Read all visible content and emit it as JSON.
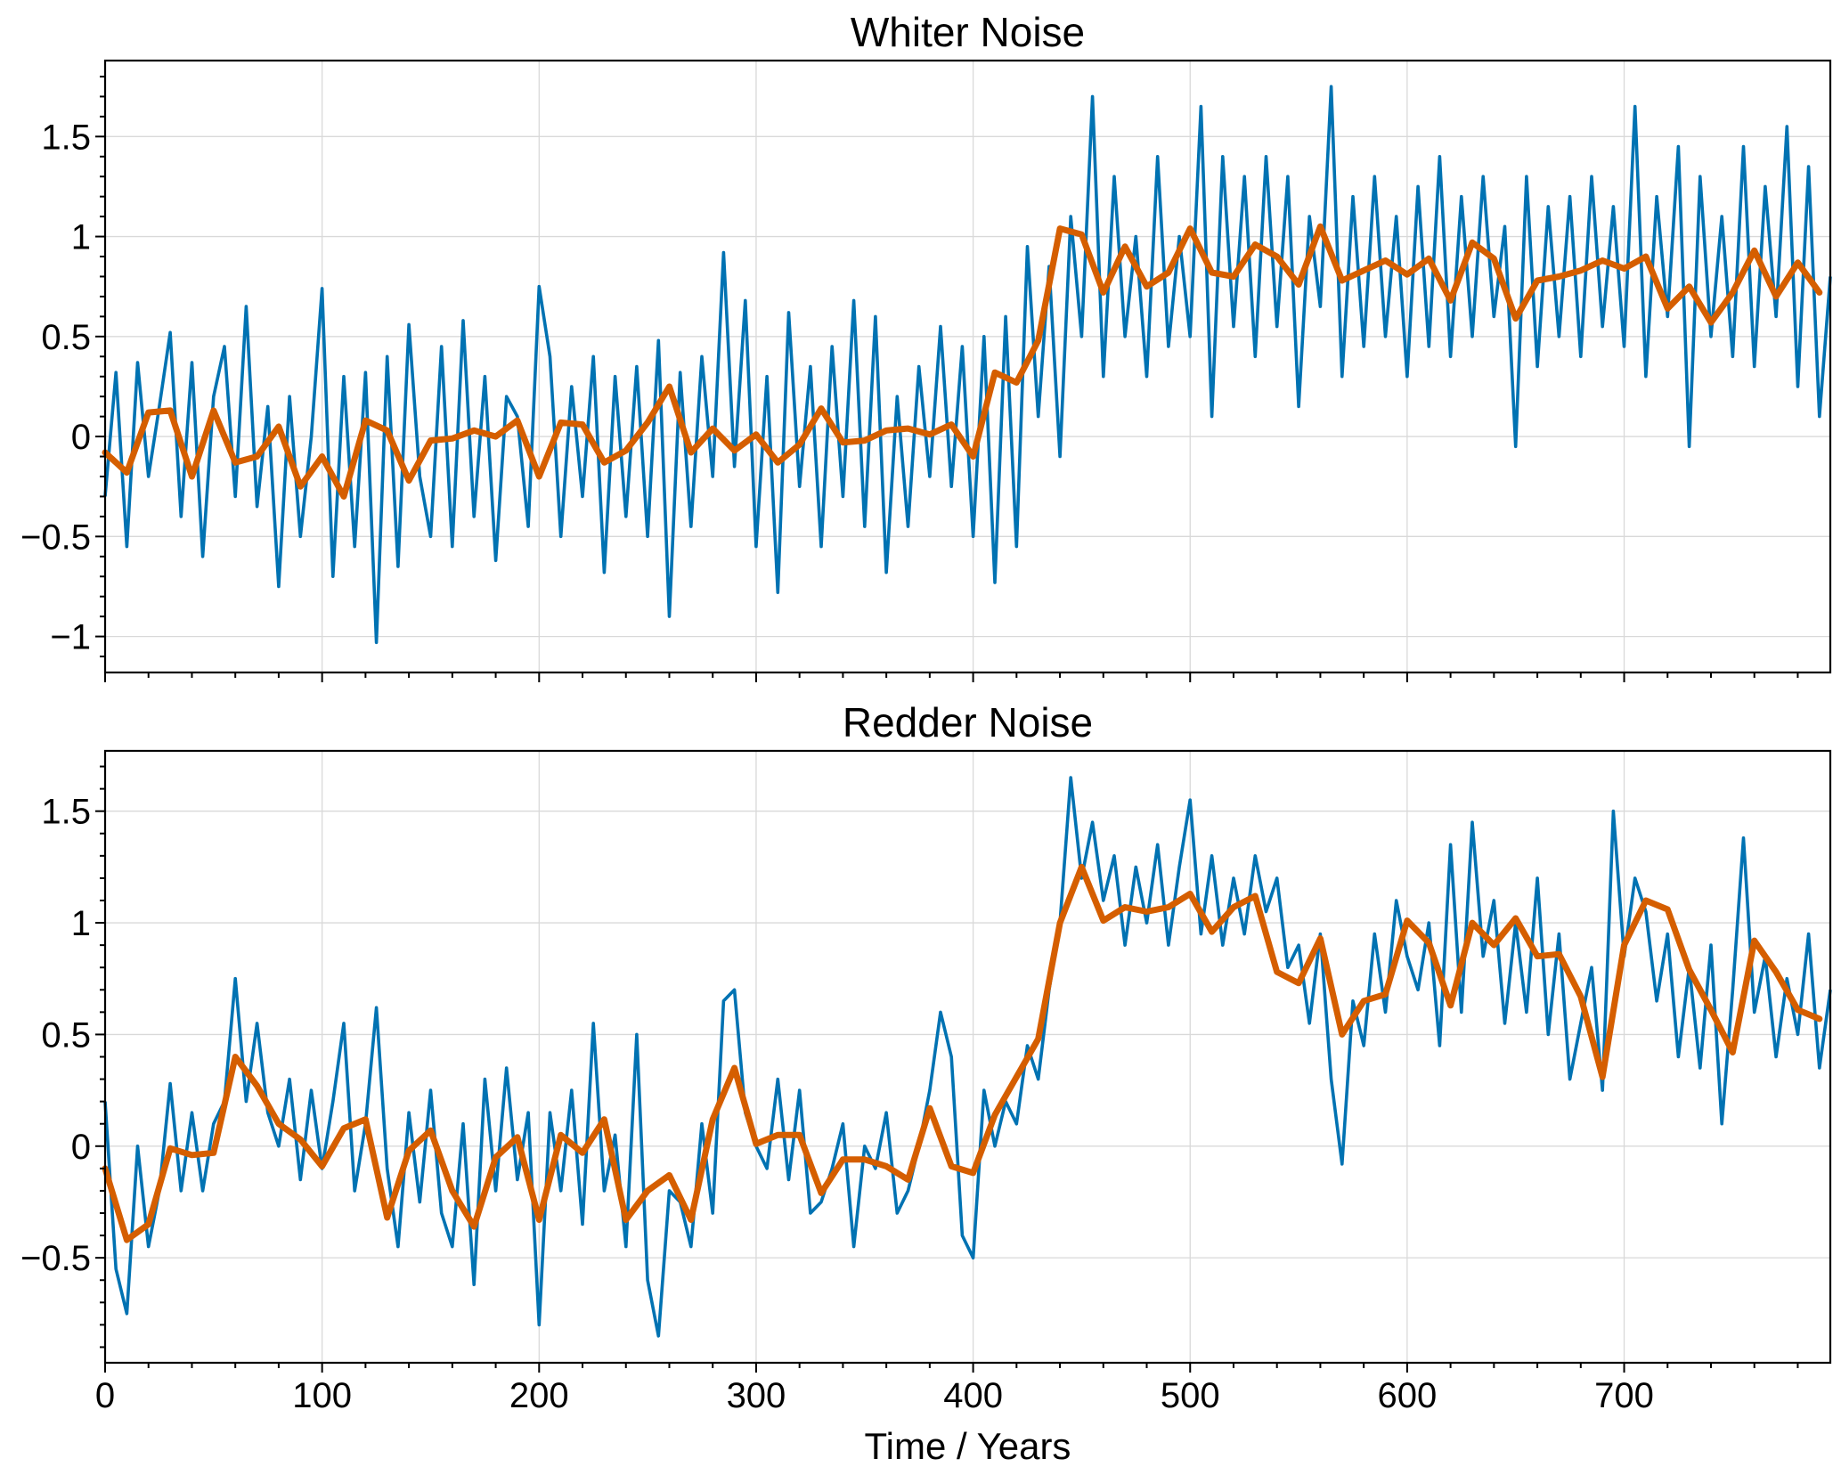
{
  "colors": {
    "raw_series": "#0072b2",
    "smoothed_series": "#d55e00",
    "grid": "#d9d9d9",
    "frame": "#000000"
  },
  "chart_data": [
    {
      "type": "line",
      "title": "Whiter Noise",
      "xlabel": "",
      "ylabel": "",
      "xlim": [
        0,
        795
      ],
      "ylim": [
        -1.18,
        1.88
      ],
      "grid": true,
      "yticks": [
        -1,
        -0.5,
        0,
        0.5,
        1,
        1.5
      ],
      "ytick_labels": [
        "−1",
        "−0.5",
        "0",
        "0.5",
        "1",
        "1.5"
      ],
      "xticks": [
        0,
        100,
        200,
        300,
        400,
        500,
        600,
        700
      ],
      "xtick_labels": [],
      "series": [
        {
          "x": [
            0,
            5,
            10,
            15,
            20,
            25,
            30,
            35,
            40,
            45,
            50,
            55,
            60,
            65,
            70,
            75,
            80,
            85,
            90,
            95,
            100,
            105,
            110,
            115,
            120,
            125,
            130,
            135,
            140,
            145,
            150,
            155,
            160,
            165,
            170,
            175,
            180,
            185,
            190,
            195,
            200,
            205,
            210,
            215,
            220,
            225,
            230,
            235,
            240,
            245,
            250,
            255,
            260,
            265,
            270,
            275,
            280,
            285,
            290,
            295,
            300,
            305,
            310,
            315,
            320,
            325,
            330,
            335,
            340,
            345,
            350,
            355,
            360,
            365,
            370,
            375,
            380,
            385,
            390,
            395,
            400,
            405,
            410,
            415,
            420,
            425,
            430,
            435,
            440,
            445,
            450,
            455,
            460,
            465,
            470,
            475,
            480,
            485,
            490,
            495,
            500,
            505,
            510,
            515,
            520,
            525,
            530,
            535,
            540,
            545,
            550,
            555,
            560,
            565,
            570,
            575,
            580,
            585,
            590,
            595,
            600,
            605,
            610,
            615,
            620,
            625,
            630,
            635,
            640,
            645,
            650,
            655,
            660,
            665,
            670,
            675,
            680,
            685,
            690,
            695,
            700,
            705,
            710,
            715,
            720,
            725,
            730,
            735,
            740,
            745,
            750,
            755,
            760,
            765,
            770,
            775,
            780,
            785,
            790,
            795
          ],
          "values": [
            -0.3,
            0.32,
            -0.55,
            0.37,
            -0.2,
            0.15,
            0.52,
            -0.4,
            0.37,
            -0.6,
            0.2,
            0.45,
            -0.3,
            0.65,
            -0.35,
            0.15,
            -0.75,
            0.2,
            -0.5,
            0.0,
            0.74,
            -0.7,
            0.3,
            -0.55,
            0.32,
            -1.03,
            0.4,
            -0.65,
            0.56,
            -0.2,
            -0.5,
            0.45,
            -0.55,
            0.58,
            -0.4,
            0.3,
            -0.62,
            0.2,
            0.1,
            -0.45,
            0.75,
            0.4,
            -0.5,
            0.25,
            -0.3,
            0.4,
            -0.68,
            0.3,
            -0.4,
            0.35,
            -0.5,
            0.48,
            -0.9,
            0.32,
            -0.45,
            0.4,
            -0.2,
            0.92,
            -0.15,
            0.68,
            -0.55,
            0.3,
            -0.78,
            0.62,
            -0.25,
            0.35,
            -0.55,
            0.45,
            -0.3,
            0.68,
            -0.45,
            0.6,
            -0.68,
            0.2,
            -0.45,
            0.35,
            -0.2,
            0.55,
            -0.25,
            0.45,
            -0.5,
            0.5,
            -0.73,
            0.6,
            -0.55,
            0.95,
            0.1,
            0.85,
            -0.1,
            1.1,
            0.5,
            1.7,
            0.3,
            1.3,
            0.5,
            1.0,
            0.3,
            1.4,
            0.45,
            1.0,
            0.5,
            1.65,
            0.1,
            1.4,
            0.55,
            1.3,
            0.4,
            1.4,
            0.55,
            1.3,
            0.15,
            1.1,
            0.65,
            1.75,
            0.3,
            1.2,
            0.45,
            1.3,
            0.5,
            1.1,
            0.3,
            1.25,
            0.45,
            1.4,
            0.4,
            1.2,
            0.5,
            1.3,
            0.6,
            1.05,
            -0.05,
            1.3,
            0.35,
            1.15,
            0.5,
            1.2,
            0.4,
            1.3,
            0.55,
            1.15,
            0.45,
            1.65,
            0.3,
            1.2,
            0.6,
            1.45,
            -0.05,
            1.3,
            0.5,
            1.1,
            0.4,
            1.45,
            0.35,
            1.25,
            0.6,
            1.55,
            0.25,
            1.35,
            0.1,
            0.8
          ]
        },
        {
          "x": [
            0,
            10,
            20,
            30,
            40,
            50,
            60,
            70,
            80,
            90,
            100,
            110,
            120,
            130,
            140,
            150,
            160,
            170,
            180,
            190,
            200,
            210,
            220,
            230,
            240,
            250,
            260,
            270,
            280,
            290,
            300,
            310,
            320,
            330,
            340,
            350,
            360,
            370,
            380,
            390,
            400,
            410,
            420,
            430,
            440,
            450,
            460,
            470,
            480,
            490,
            500,
            510,
            520,
            530,
            540,
            550,
            560,
            570,
            580,
            590,
            600,
            610,
            620,
            630,
            640,
            650,
            660,
            670,
            680,
            690,
            700,
            710,
            720,
            730,
            740,
            750,
            760,
            770,
            780,
            790
          ],
          "values": [
            -0.08,
            -0.18,
            0.12,
            0.13,
            -0.2,
            0.13,
            -0.13,
            -0.1,
            0.05,
            -0.25,
            -0.1,
            -0.3,
            0.08,
            0.03,
            -0.22,
            -0.02,
            -0.01,
            0.03,
            0.0,
            0.08,
            -0.2,
            0.07,
            0.06,
            -0.13,
            -0.07,
            0.07,
            0.25,
            -0.08,
            0.04,
            -0.07,
            0.01,
            -0.13,
            -0.04,
            0.14,
            -0.03,
            -0.02,
            0.03,
            0.04,
            0.01,
            0.06,
            -0.1,
            0.32,
            0.27,
            0.48,
            1.04,
            1.01,
            0.72,
            0.95,
            0.75,
            0.82,
            1.04,
            0.82,
            0.8,
            0.96,
            0.9,
            0.76,
            1.05,
            0.78,
            0.83,
            0.88,
            0.81,
            0.89,
            0.68,
            0.97,
            0.89,
            0.59,
            0.78,
            0.8,
            0.83,
            0.88,
            0.84,
            0.9,
            0.64,
            0.75,
            0.57,
            0.72,
            0.93,
            0.7,
            0.87,
            0.72
          ]
        }
      ]
    },
    {
      "type": "line",
      "title": "Redder Noise",
      "xlabel": "Time / Years",
      "ylabel": "",
      "xlim": [
        0,
        795
      ],
      "ylim": [
        -0.97,
        1.77
      ],
      "grid": true,
      "yticks": [
        -0.5,
        0,
        0.5,
        1,
        1.5
      ],
      "ytick_labels": [
        "−0.5",
        "0",
        "0.5",
        "1",
        "1.5"
      ],
      "xticks": [
        0,
        100,
        200,
        300,
        400,
        500,
        600,
        700
      ],
      "xtick_labels": [
        "0",
        "100",
        "200",
        "300",
        "400",
        "500",
        "600",
        "700"
      ],
      "series": [
        {
          "x": [
            0,
            5,
            10,
            15,
            20,
            25,
            30,
            35,
            40,
            45,
            50,
            55,
            60,
            65,
            70,
            75,
            80,
            85,
            90,
            95,
            100,
            105,
            110,
            115,
            120,
            125,
            130,
            135,
            140,
            145,
            150,
            155,
            160,
            165,
            170,
            175,
            180,
            185,
            190,
            195,
            200,
            205,
            210,
            215,
            220,
            225,
            230,
            235,
            240,
            245,
            250,
            255,
            260,
            265,
            270,
            275,
            280,
            285,
            290,
            295,
            300,
            305,
            310,
            315,
            320,
            325,
            330,
            335,
            340,
            345,
            350,
            355,
            360,
            365,
            370,
            375,
            380,
            385,
            390,
            395,
            400,
            405,
            410,
            415,
            420,
            425,
            430,
            435,
            440,
            445,
            450,
            455,
            460,
            465,
            470,
            475,
            480,
            485,
            490,
            495,
            500,
            505,
            510,
            515,
            520,
            525,
            530,
            535,
            540,
            545,
            550,
            555,
            560,
            565,
            570,
            575,
            580,
            585,
            590,
            595,
            600,
            605,
            610,
            615,
            620,
            625,
            630,
            635,
            640,
            645,
            650,
            655,
            660,
            665,
            670,
            675,
            680,
            685,
            690,
            695,
            700,
            705,
            710,
            715,
            720,
            725,
            730,
            735,
            740,
            745,
            750,
            755,
            760,
            765,
            770,
            775,
            780,
            785,
            790,
            795
          ],
          "values": [
            0.2,
            -0.55,
            -0.75,
            0.0,
            -0.45,
            -0.2,
            0.28,
            -0.2,
            0.15,
            -0.2,
            0.1,
            0.2,
            0.75,
            0.2,
            0.55,
            0.15,
            0.0,
            0.3,
            -0.15,
            0.25,
            -0.1,
            0.2,
            0.55,
            -0.2,
            0.1,
            0.62,
            -0.1,
            -0.45,
            0.15,
            -0.25,
            0.25,
            -0.3,
            -0.45,
            0.1,
            -0.62,
            0.3,
            -0.2,
            0.35,
            -0.15,
            0.15,
            -0.8,
            0.15,
            -0.2,
            0.25,
            -0.35,
            0.55,
            -0.2,
            0.05,
            -0.45,
            0.5,
            -0.6,
            -0.85,
            -0.2,
            -0.25,
            -0.45,
            0.1,
            -0.3,
            0.65,
            0.7,
            0.15,
            0.0,
            -0.1,
            0.3,
            -0.15,
            0.25,
            -0.3,
            -0.25,
            -0.1,
            0.1,
            -0.45,
            0.0,
            -0.1,
            0.15,
            -0.3,
            -0.2,
            0.0,
            0.25,
            0.6,
            0.4,
            -0.4,
            -0.5,
            0.25,
            0.0,
            0.2,
            0.1,
            0.45,
            0.3,
            0.7,
            1.0,
            1.65,
            1.2,
            1.45,
            1.1,
            1.3,
            0.9,
            1.25,
            1.0,
            1.35,
            0.9,
            1.25,
            1.55,
            0.95,
            1.3,
            0.9,
            1.2,
            0.95,
            1.3,
            1.05,
            1.2,
            0.8,
            0.9,
            0.55,
            0.95,
            0.3,
            -0.08,
            0.65,
            0.45,
            0.95,
            0.6,
            1.1,
            0.85,
            0.7,
            1.0,
            0.45,
            1.35,
            0.6,
            1.45,
            0.85,
            1.1,
            0.55,
            1.0,
            0.6,
            1.2,
            0.5,
            0.95,
            0.3,
            0.55,
            0.8,
            0.25,
            1.5,
            0.85,
            1.2,
            1.05,
            0.65,
            0.95,
            0.4,
            0.8,
            0.35,
            0.9,
            0.1,
            0.7,
            1.38,
            0.6,
            0.85,
            0.4,
            0.75,
            0.5,
            0.95,
            0.35,
            0.7
          ]
        },
        {
          "x": [
            0,
            10,
            20,
            30,
            40,
            50,
            60,
            70,
            80,
            90,
            100,
            110,
            120,
            130,
            140,
            150,
            160,
            170,
            180,
            190,
            200,
            210,
            220,
            230,
            240,
            250,
            260,
            270,
            280,
            290,
            300,
            310,
            320,
            330,
            340,
            350,
            360,
            370,
            380,
            390,
            400,
            410,
            420,
            430,
            440,
            450,
            460,
            470,
            480,
            490,
            500,
            510,
            520,
            530,
            540,
            550,
            560,
            570,
            580,
            590,
            600,
            610,
            620,
            630,
            640,
            650,
            660,
            670,
            680,
            690,
            700,
            710,
            720,
            730,
            740,
            750,
            760,
            770,
            780,
            790
          ],
          "values": [
            -0.1,
            -0.42,
            -0.35,
            -0.01,
            -0.04,
            -0.03,
            0.4,
            0.27,
            0.1,
            0.03,
            -0.09,
            0.08,
            0.12,
            -0.32,
            -0.02,
            0.07,
            -0.2,
            -0.36,
            -0.05,
            0.04,
            -0.33,
            0.05,
            -0.03,
            0.12,
            -0.33,
            -0.2,
            -0.13,
            -0.33,
            0.12,
            0.35,
            0.01,
            0.05,
            0.05,
            -0.21,
            -0.06,
            -0.06,
            -0.09,
            -0.15,
            0.17,
            -0.09,
            -0.12,
            0.14,
            0.31,
            0.48,
            1.0,
            1.25,
            1.01,
            1.07,
            1.05,
            1.07,
            1.13,
            0.96,
            1.07,
            1.12,
            0.78,
            0.73,
            0.93,
            0.5,
            0.65,
            0.68,
            1.01,
            0.91,
            0.63,
            1.0,
            0.9,
            1.02,
            0.85,
            0.86,
            0.67,
            0.31,
            0.9,
            1.1,
            1.06,
            0.79,
            0.61,
            0.42,
            0.92,
            0.78,
            0.61,
            0.57
          ]
        }
      ]
    }
  ]
}
